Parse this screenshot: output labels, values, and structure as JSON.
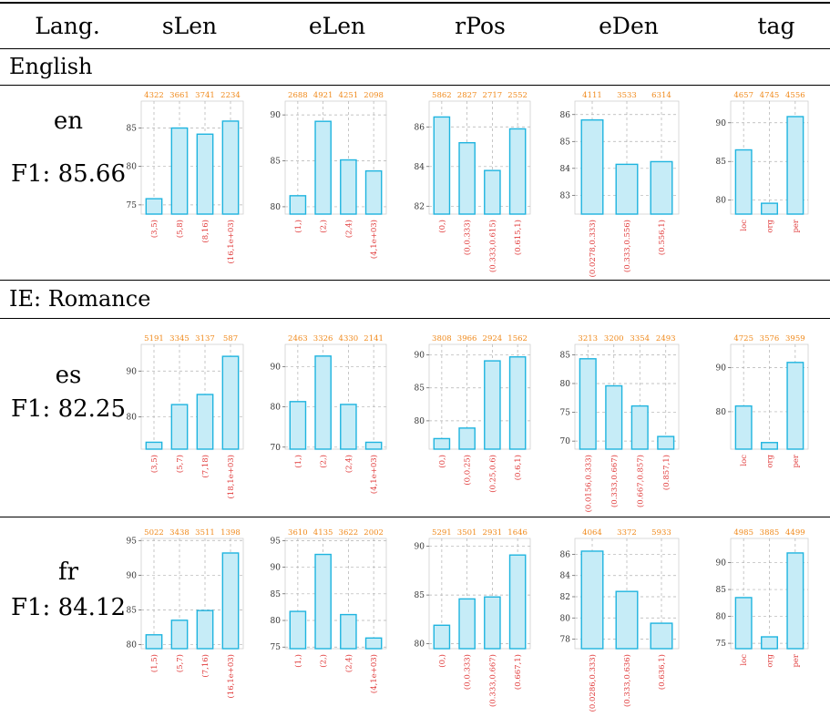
{
  "header": {
    "lang": "Lang.",
    "cols": [
      "sLen",
      "eLen",
      "rPos",
      "eDen",
      "tag"
    ]
  },
  "sections": [
    {
      "title": "English"
    },
    {
      "title": "IE: Romance"
    }
  ],
  "rows": [
    {
      "code": "en",
      "f1_label": "F1: 85.66"
    },
    {
      "code": "es",
      "f1_label": "F1: 82.25"
    },
    {
      "code": "fr",
      "f1_label": "F1: 84.12"
    }
  ],
  "colors": {
    "bar_fill": "#c6ecf7",
    "bar_stroke": "#1fb4df",
    "count_label": "#f08a1c",
    "category_label": "#e03a3a",
    "grid": "#b0b0b0"
  },
  "chart_data": [
    {
      "row": "en",
      "col": "sLen",
      "type": "bar",
      "categories": [
        "(3,5)",
        "(5,8)",
        "(8,16)",
        "(16,1e+03)"
      ],
      "values": [
        75.8,
        85.0,
        84.2,
        85.9
      ],
      "counts": [
        "4322",
        "3661",
        "3741",
        "2234"
      ],
      "yticks": [
        75,
        80,
        85
      ],
      "ylim": [
        73.8,
        88.5
      ],
      "grid": true
    },
    {
      "row": "en",
      "col": "eLen",
      "type": "bar",
      "categories": [
        "(1,)",
        "(2,)",
        "(2,4)",
        "(4,1e+03)"
      ],
      "values": [
        81.2,
        89.3,
        85.1,
        83.9
      ],
      "counts": [
        "2688",
        "4921",
        "4251",
        "2098"
      ],
      "yticks": [
        80,
        85,
        90
      ],
      "ylim": [
        79.2,
        91.5
      ],
      "grid": true
    },
    {
      "row": "en",
      "col": "rPos",
      "type": "bar",
      "categories": [
        "(0,)",
        "(0,0.333)",
        "(0.333,0.615)",
        "(0.615,1)"
      ],
      "values": [
        86.5,
        85.2,
        83.8,
        85.9
      ],
      "counts": [
        "5862",
        "2827",
        "2717",
        "2552"
      ],
      "yticks": [
        82,
        84,
        86
      ],
      "ylim": [
        81.6,
        87.3
      ],
      "grid": true
    },
    {
      "row": "en",
      "col": "eDen",
      "type": "bar",
      "categories": [
        "(0.0278,0.333)",
        "(0.333,0.556)",
        "(0.556,1)"
      ],
      "values": [
        85.8,
        84.15,
        84.25
      ],
      "counts": [
        "4111",
        "3533",
        "6314"
      ],
      "yticks": [
        83,
        84,
        85,
        86
      ],
      "ylim": [
        82.3,
        86.5
      ],
      "grid": true
    },
    {
      "row": "en",
      "col": "tag",
      "type": "bar",
      "categories": [
        "loc",
        "org",
        "per"
      ],
      "values": [
        86.5,
        79.6,
        90.8
      ],
      "counts": [
        "4657",
        "4745",
        "4556"
      ],
      "yticks": [
        80,
        85,
        90
      ],
      "ylim": [
        78.2,
        92.8
      ],
      "grid": true
    },
    {
      "row": "es",
      "col": "sLen",
      "type": "bar",
      "categories": [
        "(3,5)",
        "(5,7)",
        "(7,18)",
        "(18,1e+03)"
      ],
      "values": [
        74.5,
        82.7,
        84.9,
        93.2
      ],
      "counts": [
        "5191",
        "3345",
        "3137",
        "587"
      ],
      "yticks": [
        80,
        90
      ],
      "ylim": [
        73.0,
        95.8
      ],
      "grid": true
    },
    {
      "row": "es",
      "col": "eLen",
      "type": "bar",
      "categories": [
        "(1,)",
        "(2,)",
        "(2,4)",
        "(4,1e+03)"
      ],
      "values": [
        81.3,
        92.6,
        80.6,
        71.2
      ],
      "counts": [
        "2463",
        "3326",
        "4330",
        "2141"
      ],
      "yticks": [
        70,
        80,
        90
      ],
      "ylim": [
        69.5,
        95.5
      ],
      "grid": true
    },
    {
      "row": "es",
      "col": "rPos",
      "type": "bar",
      "categories": [
        "(0,)",
        "(0,0.25)",
        "(0.25,0.6)",
        "(0.6,1)"
      ],
      "values": [
        77.3,
        78.9,
        89.1,
        89.7
      ],
      "counts": [
        "3808",
        "3966",
        "2924",
        "1562"
      ],
      "yticks": [
        80,
        85,
        90
      ],
      "ylim": [
        75.7,
        91.6
      ],
      "grid": true
    },
    {
      "row": "es",
      "col": "eDen",
      "type": "bar",
      "categories": [
        "(0.0156,0.333)",
        "(0.333,0.667)",
        "(0.667,0.857)",
        "(0.857,1)"
      ],
      "values": [
        84.3,
        79.6,
        76.1,
        70.8
      ],
      "counts": [
        "3213",
        "3200",
        "3354",
        "2493"
      ],
      "yticks": [
        70,
        75,
        80,
        85
      ],
      "ylim": [
        68.6,
        86.8
      ],
      "grid": true
    },
    {
      "row": "es",
      "col": "tag",
      "type": "bar",
      "categories": [
        "loc",
        "org",
        "per"
      ],
      "values": [
        81.3,
        73.0,
        91.2
      ],
      "counts": [
        "4725",
        "3576",
        "3959"
      ],
      "yticks": [
        80,
        90
      ],
      "ylim": [
        71.5,
        95.3
      ],
      "grid": true
    },
    {
      "row": "fr",
      "col": "sLen",
      "type": "bar",
      "categories": [
        "(1,5)",
        "(5,7)",
        "(7,16)",
        "(16,1e+03)"
      ],
      "values": [
        81.4,
        83.5,
        84.9,
        93.2
      ],
      "counts": [
        "5022",
        "3438",
        "3511",
        "1398"
      ],
      "yticks": [
        80,
        85,
        90,
        95
      ],
      "ylim": [
        79.4,
        95.3
      ],
      "grid": true
    },
    {
      "row": "fr",
      "col": "eLen",
      "type": "bar",
      "categories": [
        "(1,)",
        "(2,)",
        "(2,4)",
        "(4,1e+03)"
      ],
      "values": [
        81.7,
        92.4,
        81.1,
        76.7
      ],
      "counts": [
        "3610",
        "4135",
        "3622",
        "2002"
      ],
      "yticks": [
        75,
        80,
        85,
        90,
        95
      ],
      "ylim": [
        74.7,
        95.4
      ],
      "grid": true
    },
    {
      "row": "fr",
      "col": "rPos",
      "type": "bar",
      "categories": [
        "(0,)",
        "(0,0.333)",
        "(0.333,0.667)",
        "(0.667,1)"
      ],
      "values": [
        81.9,
        84.6,
        84.8,
        89.1
      ],
      "counts": [
        "5291",
        "3501",
        "2931",
        "1646"
      ],
      "yticks": [
        80,
        85,
        90
      ],
      "ylim": [
        79.5,
        90.8
      ],
      "grid": true
    },
    {
      "row": "fr",
      "col": "eDen",
      "type": "bar",
      "categories": [
        "(0.0286,0.333)",
        "(0.333,0.636)",
        "(0.636,1)"
      ],
      "values": [
        86.3,
        82.5,
        79.5
      ],
      "counts": [
        "4064",
        "3372",
        "5933"
      ],
      "yticks": [
        78,
        80,
        82,
        84,
        86
      ],
      "ylim": [
        77.1,
        87.5
      ],
      "grid": true
    },
    {
      "row": "fr",
      "col": "tag",
      "type": "bar",
      "categories": [
        "loc",
        "org",
        "per"
      ],
      "values": [
        83.5,
        76.2,
        91.8
      ],
      "counts": [
        "4985",
        "3885",
        "4499"
      ],
      "yticks": [
        75,
        80,
        85,
        90
      ],
      "ylim": [
        74.0,
        94.5
      ],
      "grid": true
    }
  ]
}
